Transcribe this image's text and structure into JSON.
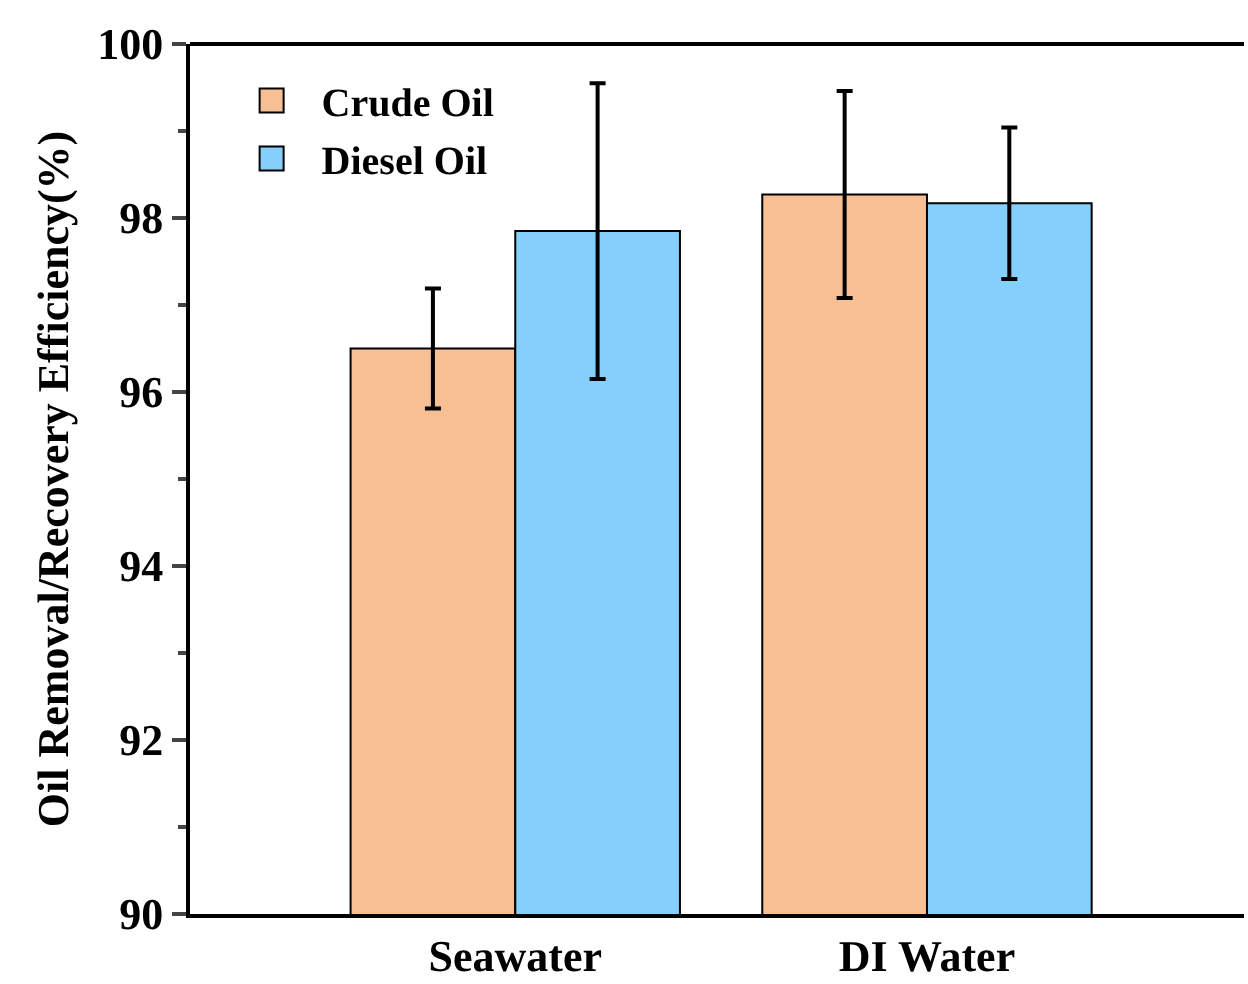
{
  "chart_data": {
    "type": "bar",
    "ylabel": "Oil Removal/Recovery Efficiency(%)",
    "categories": [
      "Seawater",
      "DI Water"
    ],
    "series": [
      {
        "name": "Crude Oil",
        "color": "#f7bf94",
        "values": [
          96.5,
          98.27
        ],
        "errors": [
          0.69,
          1.19
        ]
      },
      {
        "name": "Diesel Oil",
        "color": "#84cffc",
        "values": [
          97.85,
          98.17
        ],
        "errors": [
          1.7,
          0.87
        ]
      }
    ],
    "ylim": [
      90,
      100
    ],
    "yticks": [
      90,
      92,
      94,
      96,
      98,
      100
    ],
    "legend": "top left"
  }
}
